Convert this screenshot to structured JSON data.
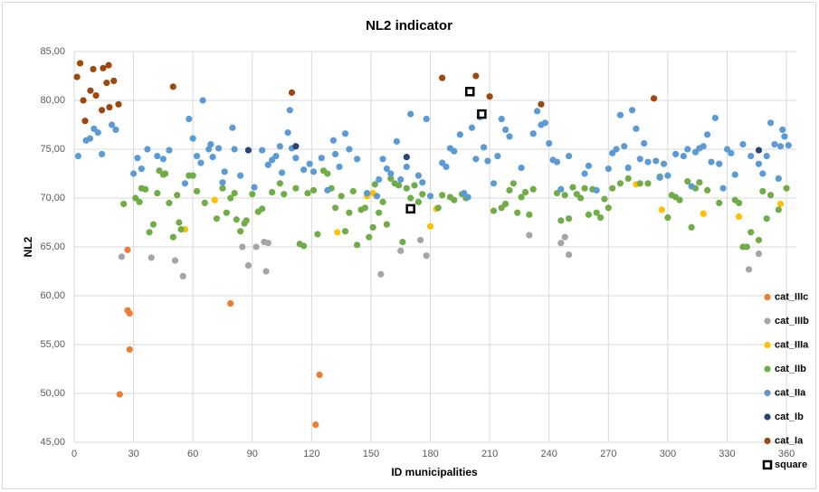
{
  "chart_data": {
    "type": "scatter",
    "title": "NL2 indicator",
    "x_label": "ID municipalities",
    "y_label": "NL2",
    "xlim": [
      0,
      365
    ],
    "xticks": [
      0,
      30,
      60,
      90,
      120,
      150,
      180,
      210,
      240,
      270,
      300,
      330,
      360
    ],
    "ylim": [
      45,
      85
    ],
    "yticks": [
      {
        "value": 45,
        "label": "45,00"
      },
      {
        "value": 50,
        "label": "50,00"
      },
      {
        "value": 55,
        "label": "55,00"
      },
      {
        "value": 60,
        "label": "60,00"
      },
      {
        "value": 65,
        "label": "65,00"
      },
      {
        "value": 70,
        "label": "70,00"
      },
      {
        "value": 75,
        "label": "75,00"
      },
      {
        "value": 80,
        "label": "80,00"
      },
      {
        "value": 85,
        "label": "85,00"
      }
    ],
    "grid": true,
    "legend": "lower right",
    "series": [
      {
        "name": "cat_IIIc",
        "color": "#ed7d31",
        "marker": "circle",
        "x": [
          27,
          23,
          27,
          28,
          28,
          79,
          122,
          124
        ],
        "values": [
          64.7,
          49.9,
          58.5,
          58.2,
          54.5,
          59.2,
          46.8,
          51.9
        ]
      },
      {
        "name": "cat_IIIb",
        "color": "#a5a5a5",
        "marker": "circle",
        "x": [
          24,
          39,
          51,
          55,
          85,
          88,
          92,
          96,
          97,
          98,
          155,
          165,
          175,
          178,
          230,
          246,
          248,
          250,
          341,
          346
        ],
        "values": [
          64.0,
          63.9,
          63.6,
          62.0,
          65.0,
          63.1,
          65.0,
          65.5,
          62.5,
          65.4,
          62.2,
          64.6,
          65.7,
          64.1,
          66.2,
          65.4,
          66.0,
          64.2,
          62.7,
          64.3
        ]
      },
      {
        "name": "cat_IIIa",
        "color": "#ffc000",
        "marker": "circle",
        "x": [
          56,
          71,
          133,
          148,
          151,
          180,
          183,
          284,
          297,
          318,
          336,
          357
        ],
        "values": [
          66.8,
          69.8,
          66.5,
          70.2,
          70.5,
          67.1,
          68.9,
          71.4,
          68.8,
          68.4,
          68.1,
          69.4
        ]
      },
      {
        "name": "cat_IIb",
        "color": "#70ad47",
        "marker": "circle",
        "x": [
          25,
          31,
          33,
          34,
          36,
          38,
          40,
          42,
          43,
          45,
          46,
          48,
          50,
          52,
          53,
          54,
          58,
          60,
          62,
          66,
          72,
          75,
          77,
          79,
          81,
          82,
          84,
          86,
          87,
          90,
          93,
          95,
          100,
          104,
          106,
          112,
          114,
          116,
          118,
          121,
          123,
          126,
          128,
          130,
          132,
          135,
          137,
          139,
          141,
          143,
          145,
          147,
          149,
          151,
          152,
          154,
          156,
          158,
          160,
          162,
          164,
          166,
          168,
          170,
          172,
          174,
          176,
          184,
          186,
          190,
          192,
          196,
          198,
          212,
          216,
          218,
          220,
          222,
          224,
          226,
          228,
          230,
          232,
          244,
          246,
          248,
          250,
          252,
          254,
          256,
          258,
          260,
          262,
          264,
          266,
          268,
          270,
          272,
          276,
          280,
          286,
          290,
          296,
          300,
          302,
          304,
          306,
          310,
          312,
          314,
          316,
          320,
          326,
          334,
          336,
          338,
          340,
          342,
          346,
          348,
          350,
          352,
          356,
          360
        ],
        "values": [
          69.4,
          70.0,
          69.6,
          71.0,
          70.9,
          66.5,
          67.3,
          70.5,
          72.8,
          72.4,
          72.5,
          69.5,
          66.0,
          70.3,
          67.5,
          66.8,
          72.3,
          72.3,
          70.7,
          69.5,
          67.9,
          71.0,
          68.5,
          70.0,
          70.5,
          67.8,
          66.6,
          67.4,
          67.7,
          70.4,
          68.6,
          68.9,
          70.6,
          71.5,
          70.4,
          71.0,
          65.3,
          65.1,
          70.5,
          70.8,
          66.3,
          72.8,
          72.5,
          71.0,
          69.0,
          70.2,
          66.6,
          68.5,
          70.7,
          65.2,
          68.8,
          69.0,
          66.0,
          67.0,
          71.4,
          68.5,
          69.6,
          67.3,
          72.0,
          71.5,
          71.3,
          65.5,
          71.0,
          70.0,
          71.3,
          69.6,
          70.4,
          69.0,
          70.3,
          70.1,
          69.8,
          70.4,
          70.0,
          68.7,
          69.0,
          69.4,
          70.8,
          71.5,
          68.5,
          70.1,
          70.6,
          68.3,
          70.9,
          70.5,
          67.7,
          70.3,
          67.9,
          71.1,
          70.4,
          70.0,
          71.0,
          68.3,
          70.9,
          68.5,
          68.0,
          69.9,
          69.0,
          71.0,
          71.5,
          72.0,
          71.5,
          71.5,
          72.2,
          68.0,
          70.3,
          70.1,
          69.8,
          71.7,
          67.0,
          71.0,
          71.6,
          70.8,
          69.5,
          69.8,
          69.5,
          65.0,
          65.0,
          66.5,
          65.7,
          70.7,
          67.9,
          70.3,
          68.8,
          71.0
        ]
      },
      {
        "name": "cat_IIa",
        "color": "#5b9bd5",
        "marker": "circle",
        "x": [
          2,
          6,
          8,
          10,
          12,
          14,
          19,
          21,
          30,
          32,
          34,
          37,
          42,
          45,
          48,
          56,
          58,
          60,
          62,
          64,
          65,
          68,
          69,
          70,
          73,
          75,
          76,
          80,
          81,
          84,
          91,
          95,
          98,
          100,
          102,
          104,
          105,
          108,
          109,
          110,
          112,
          116,
          119,
          121,
          125,
          128,
          131,
          132,
          134,
          137,
          139,
          143,
          148,
          153,
          154,
          156,
          158,
          160,
          163,
          165,
          168,
          170,
          174,
          176,
          178,
          180,
          186,
          188,
          190,
          192,
          195,
          197,
          199,
          201,
          203,
          205,
          207,
          209,
          212,
          214,
          216,
          218,
          220,
          226,
          232,
          234,
          236,
          238,
          240,
          242,
          244,
          246,
          250,
          258,
          260,
          264,
          270,
          272,
          274,
          276,
          278,
          280,
          282,
          284,
          286,
          288,
          290,
          294,
          296,
          298,
          300,
          304,
          308,
          310,
          312,
          314,
          316,
          318,
          320,
          322,
          324,
          326,
          328,
          330,
          332,
          334,
          338,
          342,
          346,
          348,
          350,
          352,
          354,
          356,
          357,
          358,
          359,
          361
        ],
        "values": [
          74.3,
          75.9,
          76.1,
          77.1,
          76.7,
          74.5,
          77.5,
          77.0,
          72.5,
          74.1,
          73.0,
          75.0,
          74.3,
          74.0,
          74.9,
          71.5,
          78.1,
          76.1,
          74.3,
          73.6,
          80.0,
          75.0,
          75.5,
          74.2,
          75.1,
          71.6,
          72.7,
          77.2,
          75.0,
          72.3,
          71.1,
          74.9,
          73.4,
          73.9,
          74.3,
          75.3,
          72.6,
          76.7,
          79.0,
          75.1,
          74.1,
          72.9,
          73.5,
          72.7,
          74.1,
          70.8,
          75.9,
          74.5,
          73.2,
          76.6,
          75.0,
          74.0,
          70.5,
          70.2,
          71.9,
          74.0,
          73.0,
          72.5,
          75.8,
          71.9,
          73.2,
          78.6,
          72.3,
          71.6,
          78.1,
          70.2,
          73.6,
          73.2,
          75.1,
          74.8,
          76.5,
          70.5,
          70.1,
          77.2,
          74.0,
          78.3,
          75.2,
          73.8,
          71.5,
          74.3,
          78.1,
          77.0,
          76.3,
          73.1,
          76.6,
          78.9,
          77.5,
          77.7,
          75.6,
          73.9,
          73.7,
          70.9,
          74.3,
          72.5,
          73.3,
          70.8,
          73.0,
          74.6,
          75.0,
          78.5,
          75.3,
          73.1,
          79.0,
          77.1,
          74.0,
          75.6,
          73.7,
          73.8,
          72.1,
          73.5,
          72.3,
          74.5,
          74.3,
          75.0,
          71.2,
          74.7,
          75.1,
          75.3,
          76.5,
          73.7,
          78.2,
          73.5,
          71.0,
          75.0,
          74.6,
          72.4,
          75.5,
          74.3,
          73.5,
          72.5,
          74.3,
          77.7,
          75.5,
          72.0,
          75.3,
          77.0,
          76.3,
          75.4
        ]
      },
      {
        "name": "cat_Ib",
        "color": "#264478",
        "marker": "circle",
        "x": [
          88,
          112,
          168,
          346
        ],
        "values": [
          74.9,
          75.3,
          74.2,
          74.9
        ]
      },
      {
        "name": "cat_Ia",
        "color": "#9e480e",
        "marker": "circle",
        "x": [
          1.4,
          3,
          4.6,
          5.5,
          8.2,
          9.6,
          11,
          14,
          14.6,
          16.4,
          17.4,
          17.8,
          20,
          22.4,
          50,
          110,
          186,
          203,
          210,
          236,
          293
        ],
        "values": [
          82.4,
          83.8,
          80.0,
          77.9,
          81.0,
          83.2,
          80.5,
          79.0,
          83.3,
          81.8,
          83.6,
          79.3,
          82.0,
          79.6,
          81.4,
          80.8,
          82.3,
          82.5,
          80.4,
          79.6,
          80.2
        ]
      },
      {
        "name": "square",
        "color": "#000000",
        "marker": "square",
        "x": [
          200,
          206,
          170
        ],
        "values": [
          80.9,
          78.6,
          68.9
        ]
      }
    ]
  }
}
